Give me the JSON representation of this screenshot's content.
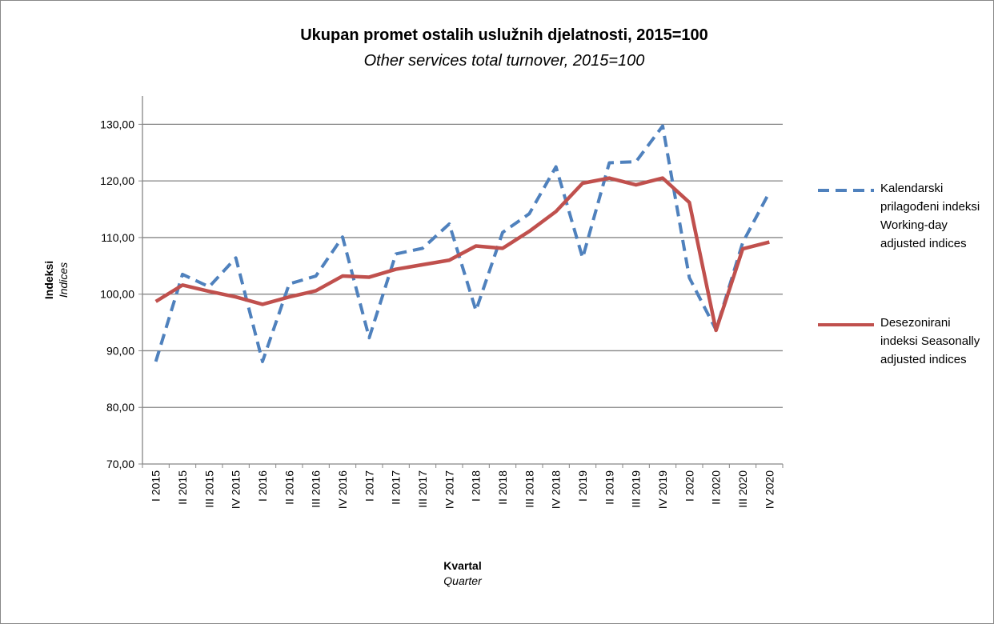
{
  "chart_data": {
    "type": "line",
    "title": "Ukupan promet ostalih uslužnih djelatnosti, 2015=100",
    "subtitle": "Other services total turnover, 2015=100",
    "y_title": "Indeksi",
    "y_subtitle": "Indices",
    "x_title": "Kvartal",
    "x_subtitle": "Quarter",
    "categories": [
      "I 2015",
      "II 2015",
      "III 2015",
      "IV 2015",
      "I 2016",
      "II 2016",
      "III 2016",
      "IV 2016",
      "I 2017",
      "II 2017",
      "III 2017",
      "IV 2017",
      "I 2018",
      "II 2018",
      "III 2018",
      "IV 2018",
      "I 2019",
      "II 2019",
      "III 2019",
      "IV 2019",
      "I 2020",
      "II 2020",
      "III 2020",
      "IV 2020"
    ],
    "series": [
      {
        "name": "Kalendarski prilagođeni indeksi Working-day adjusted indices",
        "color": "#4f81bd",
        "dashed": true,
        "values": [
          88.1,
          103.5,
          101.3,
          106.4,
          88.1,
          101.8,
          103.2,
          110.1,
          92.3,
          107.1,
          108.1,
          112.4,
          97.1,
          110.9,
          114.2,
          122.5,
          106.4,
          123.2,
          123.4,
          129.7,
          102.9,
          93.7,
          109.1,
          118.0
        ]
      },
      {
        "name": "Desezonirani indeksi Seasonally adjusted indices",
        "color": "#c0504d",
        "dashed": false,
        "values": [
          98.7,
          101.6,
          100.5,
          99.5,
          98.2,
          99.5,
          100.6,
          103.2,
          103.0,
          104.4,
          105.2,
          106.0,
          108.5,
          108.1,
          111.1,
          114.6,
          119.6,
          120.5,
          119.3,
          120.5,
          116.2,
          93.6,
          108.0,
          109.2
        ]
      }
    ],
    "ylim": [
      70,
      135
    ],
    "yticks": [
      {
        "value": 70,
        "label": "70,00"
      },
      {
        "value": 80,
        "label": "80,00"
      },
      {
        "value": 90,
        "label": "90,00"
      },
      {
        "value": 100,
        "label": "100,00"
      },
      {
        "value": 110,
        "label": "110,00"
      },
      {
        "value": 120,
        "label": "120,00"
      },
      {
        "value": 130,
        "label": "130,00"
      }
    ],
    "grid": true
  }
}
